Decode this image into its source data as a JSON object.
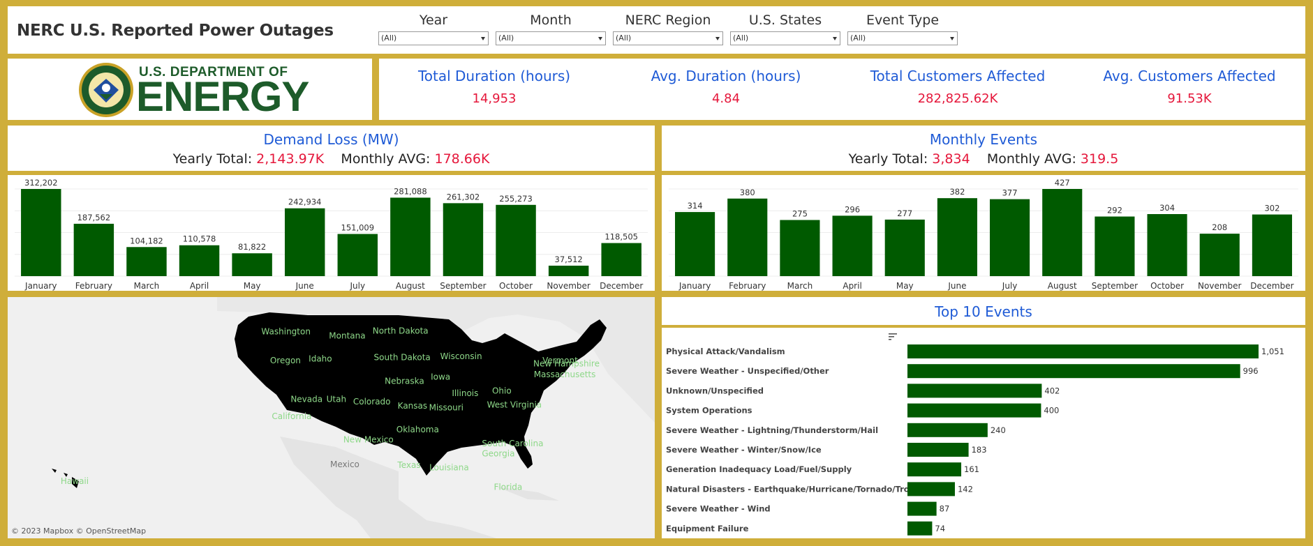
{
  "header": {
    "title": "NERC U.S. Reported Power Outages",
    "filters": [
      {
        "label": "Year",
        "value": "(All)"
      },
      {
        "label": "Month",
        "value": "(All)"
      },
      {
        "label": "NERC Region",
        "value": "(All)"
      },
      {
        "label": "U.S. States",
        "value": "(All)"
      },
      {
        "label": "Event Type",
        "value": "(All)"
      }
    ]
  },
  "logo": {
    "line1": "U.S. DEPARTMENT OF",
    "line2": "ENERGY"
  },
  "kpis": [
    {
      "label": "Total Duration (hours)",
      "value": "14,953"
    },
    {
      "label": "Avg. Duration (hours)",
      "value": "4.84"
    },
    {
      "label": "Total Customers Affected",
      "value": "282,825.62K"
    },
    {
      "label": "Avg. Customers Affected",
      "value": "91.53K"
    }
  ],
  "demand": {
    "title": "Demand Loss (MW)",
    "yearly_label": "Yearly Total: ",
    "yearly_value": "2,143.97K",
    "monthly_label": "Monthly AVG: ",
    "monthly_value": "178.66K"
  },
  "events": {
    "title": "Monthly Events",
    "yearly_label": "Yearly Total: ",
    "yearly_value": "3,834",
    "monthly_label": "Monthly AVG: ",
    "monthly_value": "319.5"
  },
  "top": {
    "title": "Top 10 Events"
  },
  "map": {
    "credit": "© 2023 Mapbox  © OpenStreetMap",
    "country_label": "Mexico",
    "states": [
      {
        "name": "Washington",
        "lon": -120.5,
        "lat": 47.5
      },
      {
        "name": "Montana",
        "lon": -109.8,
        "lat": 47.0
      },
      {
        "name": "North Dakota",
        "lon": -100.5,
        "lat": 47.6
      },
      {
        "name": "Oregon",
        "lon": -120.6,
        "lat": 44.0
      },
      {
        "name": "Idaho",
        "lon": -114.5,
        "lat": 44.2
      },
      {
        "name": "South Dakota",
        "lon": -100.2,
        "lat": 44.4
      },
      {
        "name": "Wisconsin",
        "lon": -89.9,
        "lat": 44.5
      },
      {
        "name": "Vermont",
        "lon": -72.6,
        "lat": 44.0
      },
      {
        "name": "New Hampshire",
        "lon": -71.5,
        "lat": 43.6
      },
      {
        "name": "Massachusetts",
        "lon": -71.8,
        "lat": 42.3
      },
      {
        "name": "Iowa",
        "lon": -93.5,
        "lat": 42.0
      },
      {
        "name": "Nebraska",
        "lon": -99.8,
        "lat": 41.5
      },
      {
        "name": "Illinois",
        "lon": -89.2,
        "lat": 40.0
      },
      {
        "name": "Ohio",
        "lon": -82.8,
        "lat": 40.3
      },
      {
        "name": "Nevada",
        "lon": -116.9,
        "lat": 39.3
      },
      {
        "name": "Utah",
        "lon": -111.7,
        "lat": 39.3
      },
      {
        "name": "Colorado",
        "lon": -105.5,
        "lat": 39.0
      },
      {
        "name": "Kansas",
        "lon": -98.4,
        "lat": 38.5
      },
      {
        "name": "Missouri",
        "lon": -92.5,
        "lat": 38.3
      },
      {
        "name": "West Virginia",
        "lon": -80.6,
        "lat": 38.6
      },
      {
        "name": "California",
        "lon": -119.5,
        "lat": 37.2
      },
      {
        "name": "Oklahoma",
        "lon": -97.5,
        "lat": 35.6
      },
      {
        "name": "New Mexico",
        "lon": -106.1,
        "lat": 34.4
      },
      {
        "name": "South Carolina",
        "lon": -80.9,
        "lat": 33.9
      },
      {
        "name": "Georgia",
        "lon": -83.4,
        "lat": 32.7
      },
      {
        "name": "Texas",
        "lon": -99.0,
        "lat": 31.3
      },
      {
        "name": "Louisiana",
        "lon": -92.0,
        "lat": 31.0
      },
      {
        "name": "Florida",
        "lon": -81.7,
        "lat": 28.6
      },
      {
        "name": "Hawaii",
        "lon": -155.5,
        "lat": 19.8
      }
    ]
  },
  "chart_data": [
    {
      "type": "bar",
      "title": "Demand Loss (MW)",
      "categories": [
        "January",
        "February",
        "March",
        "April",
        "May",
        "June",
        "July",
        "August",
        "September",
        "October",
        "November",
        "December"
      ],
      "values": [
        312202,
        187562,
        104182,
        110578,
        81822,
        242934,
        151009,
        281088,
        261302,
        255273,
        37512,
        118505
      ],
      "labels": [
        "312,202",
        "187,562",
        "104,182",
        "110,578",
        "81,822",
        "242,934",
        "151,009",
        "281,088",
        "261,302",
        "255,273",
        "37,512",
        "118,505"
      ],
      "color": "#005a00",
      "ylim": [
        0,
        312202
      ]
    },
    {
      "type": "bar",
      "title": "Monthly Events",
      "categories": [
        "January",
        "February",
        "March",
        "April",
        "May",
        "June",
        "July",
        "August",
        "September",
        "October",
        "November",
        "December"
      ],
      "values": [
        314,
        380,
        275,
        296,
        277,
        382,
        377,
        427,
        292,
        304,
        208,
        302
      ],
      "labels": [
        "314",
        "380",
        "275",
        "296",
        "277",
        "382",
        "377",
        "427",
        "292",
        "304",
        "208",
        "302"
      ],
      "color": "#005a00",
      "ylim": [
        0,
        427
      ]
    },
    {
      "type": "bar",
      "orientation": "horizontal",
      "title": "Top 10 Events",
      "categories": [
        "Physical Attack/Vandalism",
        "Severe Weather - Unspecified/Other",
        "Unknown/Unspecified",
        "System Operations",
        "Severe Weather - Lightning/Thunderstorm/Hail",
        "Severe Weather - Winter/Snow/Ice",
        "Generation Inadequacy Load/Fuel/Supply",
        "Natural Disasters - Earthquake/Hurricane/Tornado/Tropical",
        "Severe Weather - Wind",
        "Equipment Failure"
      ],
      "values": [
        1051,
        996,
        402,
        400,
        240,
        183,
        161,
        142,
        87,
        74
      ],
      "labels": [
        "1,051",
        "996",
        "402",
        "400",
        "240",
        "183",
        "161",
        "142",
        "87",
        "74"
      ],
      "color": "#005a00",
      "ylim": [
        0,
        1051
      ]
    }
  ]
}
